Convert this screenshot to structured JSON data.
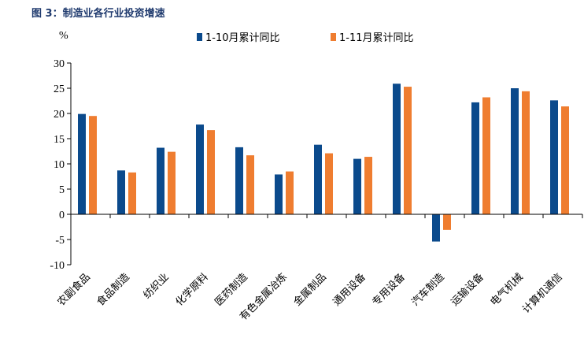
{
  "chart_data": {
    "type": "bar",
    "title": "图 3：制造业各行业投资增速",
    "ylabel": "%",
    "xlabel": "",
    "ylim": [
      -10,
      30
    ],
    "yticks": [
      30,
      25,
      20,
      15,
      10,
      5,
      0,
      -5,
      -10
    ],
    "legend_position": "top",
    "grid": false,
    "categories": [
      "农副食品",
      "食品制造",
      "纺织业",
      "化学原料",
      "医药制造",
      "有色金属冶炼",
      "金属制品",
      "通用设备",
      "专用设备",
      "汽车制造",
      "运输设备",
      "电气机械",
      "计算机通信"
    ],
    "series": [
      {
        "name": "1-10月累计同比",
        "color": "#0b4a8c",
        "values": [
          19.9,
          8.7,
          13.2,
          17.8,
          13.3,
          7.9,
          13.8,
          11.0,
          25.9,
          -5.4,
          22.2,
          25.0,
          22.6
        ]
      },
      {
        "name": "1-11月累计同比",
        "color": "#ef7d30",
        "values": [
          19.5,
          8.3,
          12.4,
          16.7,
          11.7,
          8.5,
          12.1,
          11.4,
          25.3,
          -3.1,
          23.2,
          24.4,
          21.4
        ]
      }
    ]
  }
}
